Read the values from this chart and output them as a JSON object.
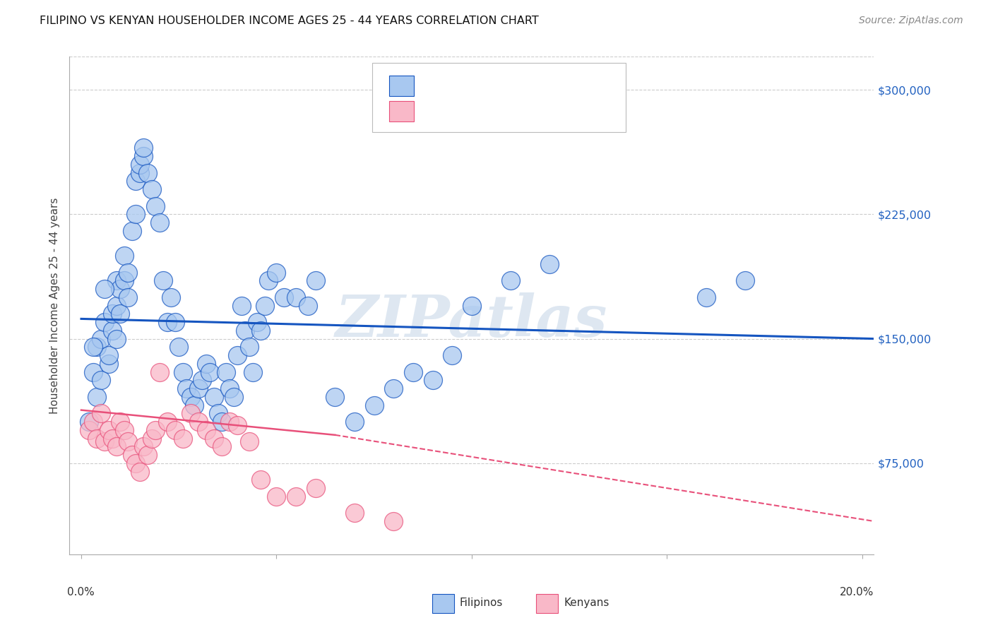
{
  "title": "FILIPINO VS KENYAN HOUSEHOLDER INCOME AGES 25 - 44 YEARS CORRELATION CHART",
  "source": "Source: ZipAtlas.com",
  "ylabel": "Householder Income Ages 25 - 44 years",
  "xlabel_ticks": [
    "0.0%",
    "20.0%"
  ],
  "xlabel_vals": [
    0.0,
    0.2
  ],
  "ytick_labels": [
    "$75,000",
    "$150,000",
    "$225,000",
    "$300,000"
  ],
  "ytick_vals": [
    75000,
    150000,
    225000,
    300000
  ],
  "ylim": [
    20000,
    320000
  ],
  "xlim": [
    -0.003,
    0.203
  ],
  "filipino_color": "#A8C8F0",
  "kenyan_color": "#F9B8C8",
  "filipino_line_color": "#1555C0",
  "kenyan_line_color": "#E8507A",
  "watermark": "ZIPatlas",
  "background_color": "#FFFFFF",
  "legend_color": "#0060C0",
  "fil_line_x0": 0.0,
  "fil_line_y0": 162000,
  "fil_line_x1": 0.203,
  "fil_line_y1": 150000,
  "ken_line_solid_x0": 0.0,
  "ken_line_solid_y0": 107000,
  "ken_line_solid_x1": 0.065,
  "ken_line_solid_y1": 92000,
  "ken_line_dash_x0": 0.065,
  "ken_line_dash_y0": 92000,
  "ken_line_dash_x1": 0.203,
  "ken_line_dash_y1": 40000,
  "filipino_x": [
    0.003,
    0.004,
    0.004,
    0.005,
    0.005,
    0.006,
    0.007,
    0.007,
    0.008,
    0.008,
    0.009,
    0.009,
    0.009,
    0.01,
    0.01,
    0.011,
    0.011,
    0.012,
    0.012,
    0.013,
    0.014,
    0.014,
    0.015,
    0.015,
    0.016,
    0.016,
    0.017,
    0.018,
    0.019,
    0.02,
    0.021,
    0.022,
    0.023,
    0.024,
    0.025,
    0.026,
    0.027,
    0.028,
    0.029,
    0.03,
    0.031,
    0.032,
    0.033,
    0.034,
    0.035,
    0.036,
    0.037,
    0.038,
    0.039,
    0.04,
    0.041,
    0.042,
    0.043,
    0.044,
    0.045,
    0.046,
    0.047,
    0.048,
    0.05,
    0.052,
    0.055,
    0.058,
    0.06,
    0.065,
    0.07,
    0.075,
    0.08,
    0.085,
    0.09,
    0.095,
    0.1,
    0.11,
    0.12,
    0.16,
    0.17,
    0.002,
    0.003,
    0.006
  ],
  "filipino_y": [
    130000,
    115000,
    145000,
    125000,
    150000,
    160000,
    135000,
    140000,
    155000,
    165000,
    170000,
    150000,
    185000,
    180000,
    165000,
    185000,
    200000,
    175000,
    190000,
    215000,
    225000,
    245000,
    250000,
    255000,
    260000,
    265000,
    250000,
    240000,
    230000,
    220000,
    185000,
    160000,
    175000,
    160000,
    145000,
    130000,
    120000,
    115000,
    110000,
    120000,
    125000,
    135000,
    130000,
    115000,
    105000,
    100000,
    130000,
    120000,
    115000,
    140000,
    170000,
    155000,
    145000,
    130000,
    160000,
    155000,
    170000,
    185000,
    190000,
    175000,
    175000,
    170000,
    185000,
    115000,
    100000,
    110000,
    120000,
    130000,
    125000,
    140000,
    170000,
    185000,
    195000,
    175000,
    185000,
    100000,
    145000,
    180000
  ],
  "kenyan_x": [
    0.002,
    0.003,
    0.004,
    0.005,
    0.006,
    0.007,
    0.008,
    0.009,
    0.01,
    0.011,
    0.012,
    0.013,
    0.014,
    0.015,
    0.016,
    0.017,
    0.018,
    0.019,
    0.02,
    0.022,
    0.024,
    0.026,
    0.028,
    0.03,
    0.032,
    0.034,
    0.036,
    0.038,
    0.04,
    0.043,
    0.046,
    0.05,
    0.055,
    0.06,
    0.07,
    0.08
  ],
  "kenyan_y": [
    95000,
    100000,
    90000,
    105000,
    88000,
    95000,
    90000,
    85000,
    100000,
    95000,
    88000,
    80000,
    75000,
    70000,
    85000,
    80000,
    90000,
    95000,
    130000,
    100000,
    95000,
    90000,
    105000,
    100000,
    95000,
    90000,
    85000,
    100000,
    98000,
    88000,
    65000,
    55000,
    55000,
    60000,
    45000,
    40000
  ]
}
